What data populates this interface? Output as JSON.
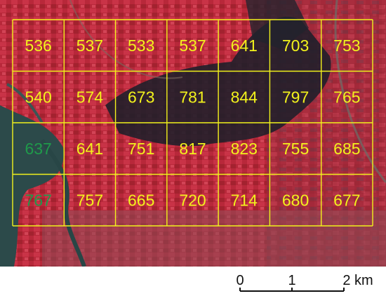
{
  "map": {
    "grid": {
      "rows": 4,
      "cols": 7,
      "line_color": "#f2f21c",
      "values": [
        [
          "536",
          "537",
          "533",
          "537",
          "641",
          "703",
          "753"
        ],
        [
          "540",
          "574",
          "673",
          "781",
          "844",
          "797",
          "765"
        ],
        [
          "637",
          "641",
          "751",
          "817",
          "823",
          "755",
          "685"
        ],
        [
          "767",
          "757",
          "665",
          "720",
          "714",
          "680",
          "677"
        ]
      ],
      "value_colors": [
        [
          "#f2f21c",
          "#f2f21c",
          "#f2f21c",
          "#f2f21c",
          "#f2f21c",
          "#f2f21c",
          "#f2f21c"
        ],
        [
          "#f2f21c",
          "#f2f21c",
          "#f2f21c",
          "#f2f21c",
          "#f2f21c",
          "#f2f21c",
          "#f2f21c"
        ],
        [
          "#1f9a4a",
          "#f2f21c",
          "#f2f21c",
          "#f2f21c",
          "#f2f21c",
          "#f2f21c",
          "#f2f21c"
        ],
        [
          "#1f9a4a",
          "#f2f21c",
          "#f2f21c",
          "#f2f21c",
          "#f2f21c",
          "#f2f21c",
          "#f2f21c"
        ]
      ]
    },
    "scale_bar": {
      "labels": [
        "0",
        "1",
        "2 km"
      ]
    }
  }
}
